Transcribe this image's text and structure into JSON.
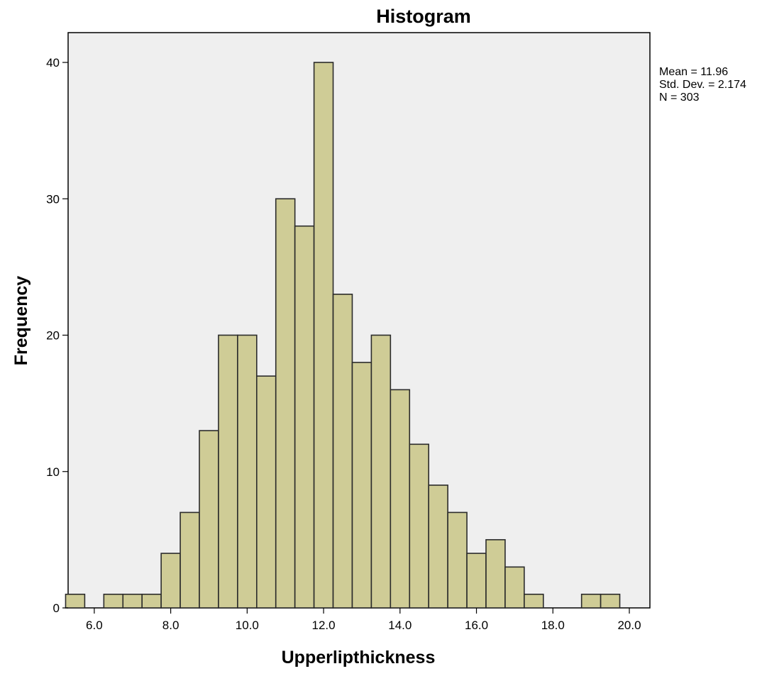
{
  "chart_data": {
    "type": "bar",
    "title": "Histogram",
    "xlabel": "Upperlipthickness",
    "ylabel": "Frequency",
    "xlim": [
      4.5,
      20.5
    ],
    "ylim": [
      0,
      42
    ],
    "x_ticks": [
      "6.0",
      "8.0",
      "10.0",
      "12.0",
      "14.0",
      "16.0",
      "18.0",
      "20.0"
    ],
    "y_ticks": [
      "0",
      "10",
      "20",
      "30",
      "40"
    ],
    "bin_width": 0.5,
    "bin_centers": [
      5.5,
      6.0,
      6.5,
      7.0,
      7.5,
      8.0,
      8.5,
      9.0,
      9.5,
      10.0,
      10.5,
      11.0,
      11.5,
      12.0,
      12.5,
      13.0,
      13.5,
      14.0,
      14.5,
      15.0,
      15.5,
      16.0,
      16.5,
      17.0,
      17.5,
      18.0,
      18.5,
      19.0,
      19.5
    ],
    "values": [
      1,
      0,
      1,
      1,
      1,
      4,
      7,
      13,
      20,
      20,
      17,
      30,
      28,
      40,
      23,
      18,
      20,
      16,
      12,
      9,
      7,
      4,
      5,
      3,
      1,
      0,
      0,
      1,
      1
    ],
    "bar_color": "#cfcc96",
    "plot_background": "#efefef",
    "stats": [
      "Mean = 11.96",
      "Std. Dev. = 2.174",
      "N = 303"
    ],
    "grid": false
  }
}
